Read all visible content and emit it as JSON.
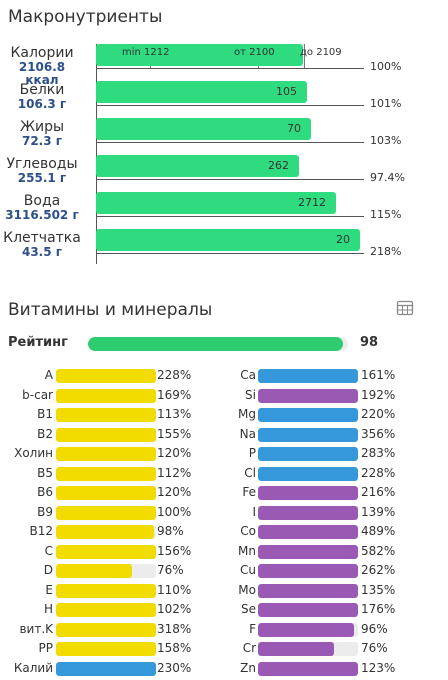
{
  "macros": {
    "title": "Макронутриенты",
    "rows": [
      {
        "name": "Калории",
        "amount": "2106.8",
        "unit": "ккал",
        "bar_text": "",
        "pct": "100%",
        "fill": 0.785
      },
      {
        "name": "Белки",
        "amount": "106.3 г",
        "bar_text": "105",
        "pct": "101%",
        "fill": 0.8
      },
      {
        "name": "Жиры",
        "amount": "72.3 г",
        "bar_text": "70",
        "pct": "103%",
        "fill": 0.815
      },
      {
        "name": "Углеводы",
        "amount": "255.1 г",
        "bar_text": "262",
        "pct": "97.4%",
        "fill": 0.77
      },
      {
        "name": "Вода",
        "amount": "3116.502 г",
        "bar_text": "2712",
        "pct": "115%",
        "fill": 0.91
      },
      {
        "name": "Клетчатка",
        "amount": "43.5 г",
        "bar_text": "20",
        "pct": "218%",
        "fill": 1.0
      }
    ],
    "markers": {
      "min": "min 1212",
      "from": "от 2100",
      "to": "до 2109"
    }
  },
  "vitamins": {
    "title": "Витамины и минералы",
    "rating_label": "Рейтинг",
    "rating_value": "98",
    "rating_fill": 0.98,
    "colors": {
      "green": "#2ecc71",
      "yellow": "#f2dc00",
      "blue": "#3498db",
      "purple": "#9b59b6"
    },
    "left": [
      {
        "name": "A",
        "pct": "228%",
        "fill": 1.0,
        "color": "#f2dc00"
      },
      {
        "name": "b-car",
        "pct": "169%",
        "fill": 1.0,
        "color": "#f2dc00"
      },
      {
        "name": "B1",
        "pct": "113%",
        "fill": 1.0,
        "color": "#f2dc00"
      },
      {
        "name": "B2",
        "pct": "155%",
        "fill": 1.0,
        "color": "#f2dc00"
      },
      {
        "name": "Холин",
        "pct": "120%",
        "fill": 1.0,
        "color": "#f2dc00"
      },
      {
        "name": "B5",
        "pct": "112%",
        "fill": 1.0,
        "color": "#f2dc00"
      },
      {
        "name": "B6",
        "pct": "120%",
        "fill": 1.0,
        "color": "#f2dc00"
      },
      {
        "name": "B9",
        "pct": "100%",
        "fill": 1.0,
        "color": "#f2dc00"
      },
      {
        "name": "B12",
        "pct": "98%",
        "fill": 0.98,
        "color": "#f2dc00"
      },
      {
        "name": "C",
        "pct": "156%",
        "fill": 1.0,
        "color": "#f2dc00"
      },
      {
        "name": "D",
        "pct": "76%",
        "fill": 0.76,
        "color": "#f2dc00"
      },
      {
        "name": "E",
        "pct": "110%",
        "fill": 1.0,
        "color": "#f2dc00"
      },
      {
        "name": "H",
        "pct": "102%",
        "fill": 1.0,
        "color": "#f2dc00"
      },
      {
        "name": "вит.K",
        "pct": "318%",
        "fill": 1.0,
        "color": "#f2dc00"
      },
      {
        "name": "PP",
        "pct": "158%",
        "fill": 1.0,
        "color": "#f2dc00"
      },
      {
        "name": "Калий",
        "pct": "230%",
        "fill": 1.0,
        "color": "#3498db"
      }
    ],
    "right": [
      {
        "name": "Ca",
        "pct": "161%",
        "fill": 1.0,
        "color": "#3498db"
      },
      {
        "name": "Si",
        "pct": "192%",
        "fill": 1.0,
        "color": "#9b59b6"
      },
      {
        "name": "Mg",
        "pct": "220%",
        "fill": 1.0,
        "color": "#3498db"
      },
      {
        "name": "Na",
        "pct": "356%",
        "fill": 1.0,
        "color": "#3498db"
      },
      {
        "name": "P",
        "pct": "283%",
        "fill": 1.0,
        "color": "#3498db"
      },
      {
        "name": "Cl",
        "pct": "228%",
        "fill": 1.0,
        "color": "#3498db"
      },
      {
        "name": "Fe",
        "pct": "216%",
        "fill": 1.0,
        "color": "#9b59b6"
      },
      {
        "name": "I",
        "pct": "139%",
        "fill": 1.0,
        "color": "#9b59b6"
      },
      {
        "name": "Co",
        "pct": "489%",
        "fill": 1.0,
        "color": "#9b59b6"
      },
      {
        "name": "Mn",
        "pct": "582%",
        "fill": 1.0,
        "color": "#9b59b6"
      },
      {
        "name": "Cu",
        "pct": "262%",
        "fill": 1.0,
        "color": "#9b59b6"
      },
      {
        "name": "Mo",
        "pct": "135%",
        "fill": 1.0,
        "color": "#9b59b6"
      },
      {
        "name": "Se",
        "pct": "176%",
        "fill": 1.0,
        "color": "#9b59b6"
      },
      {
        "name": "F",
        "pct": "96%",
        "fill": 0.96,
        "color": "#9b59b6"
      },
      {
        "name": "Cr",
        "pct": "76%",
        "fill": 0.76,
        "color": "#9b59b6"
      },
      {
        "name": "Zn",
        "pct": "123%",
        "fill": 1.0,
        "color": "#9b59b6"
      }
    ]
  }
}
